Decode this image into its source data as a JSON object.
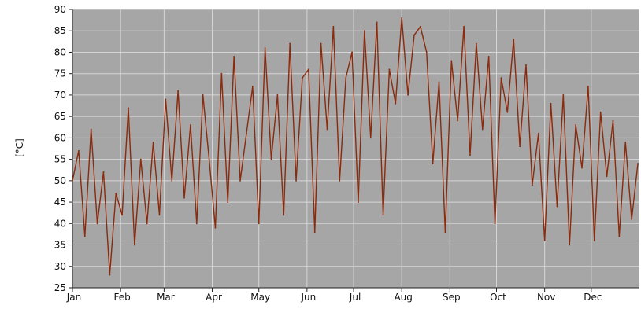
{
  "chart_data": {
    "type": "line",
    "title": "",
    "xlabel": "",
    "ylabel": "[°C]",
    "grid": true,
    "legend": "none",
    "ylim": [
      25,
      90
    ],
    "yticks": [
      25,
      30,
      35,
      40,
      45,
      50,
      55,
      60,
      65,
      70,
      75,
      80,
      85,
      90
    ],
    "xlim": [
      0,
      365
    ],
    "month_ticks": [
      {
        "label": "Jan",
        "day": 0
      },
      {
        "label": "Feb",
        "day": 31
      },
      {
        "label": "Mar",
        "day": 59
      },
      {
        "label": "Apr",
        "day": 90
      },
      {
        "label": "May",
        "day": 120
      },
      {
        "label": "Jun",
        "day": 151
      },
      {
        "label": "Jul",
        "day": 181
      },
      {
        "label": "Aug",
        "day": 212
      },
      {
        "label": "Sep",
        "day": 243
      },
      {
        "label": "Oct",
        "day": 273
      },
      {
        "label": "Nov",
        "day": 304
      },
      {
        "label": "Dec",
        "day": 334
      }
    ],
    "series": [
      {
        "name": "",
        "color": "#8b2a0c",
        "x": [
          0,
          4,
          8,
          12,
          16,
          20,
          24,
          28,
          32,
          36,
          40,
          44,
          48,
          52,
          56,
          60,
          64,
          68,
          72,
          76,
          80,
          84,
          88,
          92,
          96,
          100,
          104,
          108,
          112,
          116,
          120,
          124,
          128,
          132,
          136,
          140,
          144,
          148,
          152,
          156,
          160,
          164,
          168,
          172,
          176,
          180,
          184,
          188,
          192,
          196,
          200,
          204,
          208,
          212,
          216,
          220,
          224,
          228,
          232,
          236,
          240,
          244,
          248,
          252,
          256,
          260,
          264,
          268,
          272,
          276,
          280,
          284,
          288,
          292,
          296,
          300,
          304,
          308,
          312,
          316,
          320,
          324,
          328,
          332,
          336,
          340,
          344,
          348,
          352,
          356,
          360,
          364
        ],
        "values": [
          50,
          57,
          37,
          62,
          40,
          52,
          28,
          47,
          42,
          67,
          35,
          55,
          40,
          59,
          42,
          69,
          50,
          71,
          46,
          63,
          40,
          70,
          55,
          39,
          75,
          45,
          79,
          50,
          61,
          72,
          40,
          81,
          55,
          70,
          42,
          82,
          50,
          74,
          76,
          38,
          82,
          62,
          86,
          50,
          74,
          80,
          45,
          85,
          60,
          87,
          42,
          76,
          68,
          88,
          70,
          84,
          86,
          80,
          54,
          73,
          38,
          78,
          64,
          86,
          56,
          82,
          62,
          79,
          40,
          74,
          66,
          83,
          58,
          77,
          49,
          61,
          36,
          68,
          44,
          70,
          35,
          63,
          53,
          72,
          36,
          66,
          51,
          64,
          37,
          59,
          41,
          54
        ]
      }
    ]
  }
}
